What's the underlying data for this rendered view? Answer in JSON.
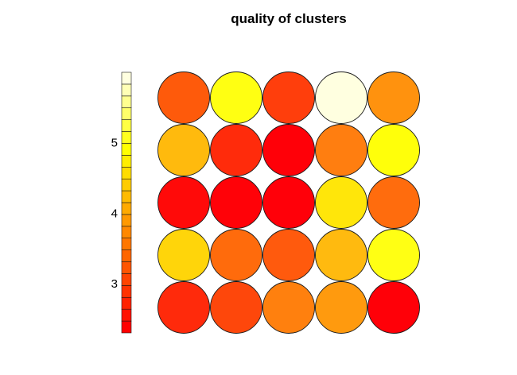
{
  "chart_data": {
    "type": "heatmap",
    "title": "quality of clusters",
    "xlabel": "",
    "ylabel": "",
    "grid": false,
    "legend": "left",
    "rows": 5,
    "cols": 5,
    "cells": [
      [
        "#fe5a0b",
        "#ffff12",
        "#ff3e0c",
        "#ffffe0",
        "#ff920e"
      ],
      [
        "#ffba0d",
        "#ff2b0b",
        "#ff0008",
        "#ff7e10",
        "#ffff0a"
      ],
      [
        "#ff0a09",
        "#ff0208",
        "#ff0009",
        "#ffe60a",
        "#ff6c0d"
      ],
      [
        "#ffd50a",
        "#ff6b0c",
        "#ff5a0d",
        "#ffba0f",
        "#ffff14"
      ],
      [
        "#ff2a0b",
        "#fe470b",
        "#ff800e",
        "#ff9a0e",
        "#ff0008"
      ]
    ],
    "colorbar": {
      "tick_labels": [
        "3",
        "4",
        "5"
      ],
      "tick_values": [
        3,
        4,
        5
      ],
      "range": [
        2.3,
        6.0
      ],
      "colors": [
        "#ff0000",
        "#ff1100",
        "#ff2200",
        "#ff3300",
        "#ff4400",
        "#ff5500",
        "#ff6600",
        "#ff7700",
        "#ff8800",
        "#ff9900",
        "#ffaa00",
        "#ffbb00",
        "#ffcc00",
        "#ffdd00",
        "#ffee00",
        "#ffff00",
        "#ffff1e",
        "#ffff44",
        "#ffff6a",
        "#ffff90",
        "#ffffb6",
        "#ffffe0"
      ]
    }
  }
}
